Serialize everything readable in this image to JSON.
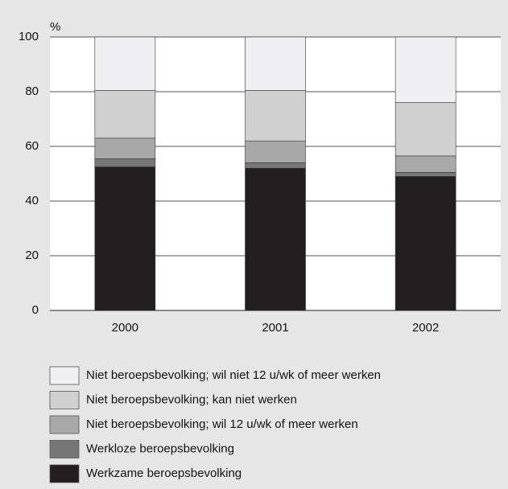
{
  "chart_data": {
    "type": "stacked_bar",
    "y_label": "%",
    "categories": [
      "2000",
      "2001",
      "2002"
    ],
    "series": [
      {
        "name": "Werkzame beroepsbevolking",
        "color": "#231f20",
        "values": [
          52.5,
          52,
          49
        ]
      },
      {
        "name": "Werkloze beroepsbevolking",
        "color": "#777777",
        "values": [
          3,
          2,
          1.5
        ]
      },
      {
        "name": "Niet beroepsbevolking; wil 12 u/wk of meer werken",
        "color": "#a8a8a8",
        "values": [
          7.5,
          8,
          6
        ]
      },
      {
        "name": "Niet beroepsbevolking; kan niet werken",
        "color": "#d0d0d0",
        "values": [
          17.5,
          18.5,
          19.5
        ]
      },
      {
        "name": "Niet beroepsbevolking; wil niet 12 u/wk of meer werken",
        "color": "#f0f0f2",
        "values": [
          19.5,
          19.5,
          24
        ]
      }
    ],
    "ylim": [
      0,
      100
    ],
    "yticks": [
      0,
      20,
      40,
      60,
      80,
      100
    ],
    "grid": true
  }
}
